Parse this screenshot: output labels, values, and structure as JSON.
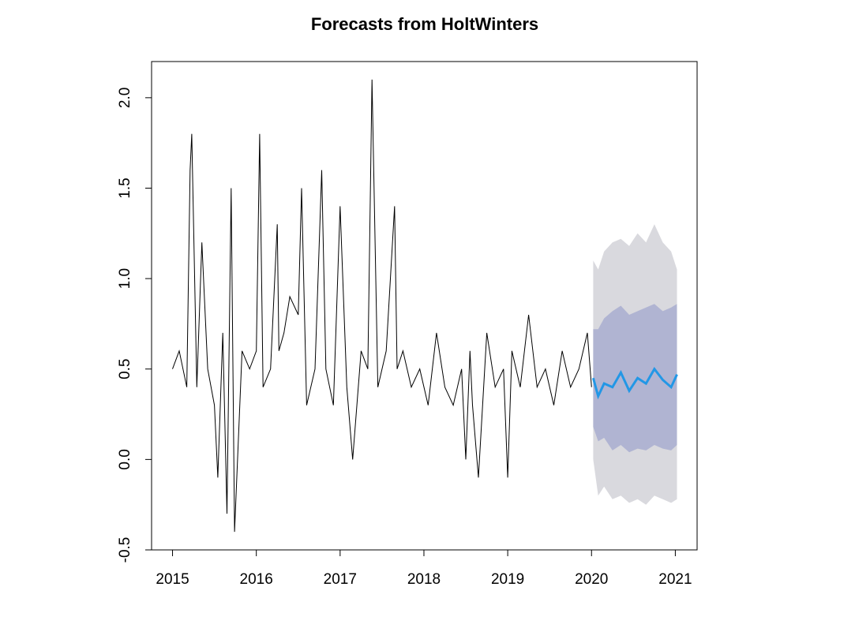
{
  "chart_data": {
    "type": "line",
    "title": "Forecasts from HoltWinters",
    "xlabel": "",
    "ylabel": "",
    "xlim": [
      2014.75,
      2021.26
    ],
    "ylim": [
      -0.5,
      2.2
    ],
    "x_ticks": [
      2015,
      2016,
      2017,
      2018,
      2019,
      2020,
      2021
    ],
    "x_tick_labels": [
      "2015",
      "2016",
      "2017",
      "2018",
      "2019",
      "2020",
      "2021"
    ],
    "y_ticks": [
      -0.5,
      0.0,
      0.5,
      1.0,
      1.5,
      2.0
    ],
    "y_tick_labels": [
      "-0.5",
      "0.0",
      "0.5",
      "1.0",
      "1.5",
      "2.0"
    ],
    "grid": false,
    "legend": "none",
    "colors": {
      "observed": "#000000",
      "forecast": "#2297e6",
      "interval_80": "#b0b4d2",
      "interval_95": "#d9d9de"
    },
    "series": [
      {
        "role": "observed",
        "x": [
          2015.0,
          2015.08,
          2015.17,
          2015.21,
          2015.23,
          2015.29,
          2015.35,
          2015.42,
          2015.5,
          2015.54,
          2015.6,
          2015.65,
          2015.7,
          2015.74,
          2015.83,
          2015.92,
          2016.0,
          2016.04,
          2016.08,
          2016.17,
          2016.25,
          2016.27,
          2016.33,
          2016.4,
          2016.5,
          2016.54,
          2016.6,
          2016.7,
          2016.78,
          2016.83,
          2016.92,
          2017.0,
          2017.08,
          2017.15,
          2017.25,
          2017.33,
          2017.38,
          2017.45,
          2017.55,
          2017.65,
          2017.68,
          2017.75,
          2017.85,
          2017.95,
          2018.05,
          2018.15,
          2018.25,
          2018.35,
          2018.45,
          2018.5,
          2018.55,
          2018.58,
          2018.65,
          2018.75,
          2018.85,
          2018.95,
          2019.0,
          2019.05,
          2019.15,
          2019.25,
          2019.35,
          2019.45,
          2019.55,
          2019.65,
          2019.75,
          2019.85,
          2019.95,
          2020.0
        ],
        "values": [
          0.5,
          0.6,
          0.4,
          1.6,
          1.8,
          0.4,
          1.2,
          0.5,
          0.3,
          -0.1,
          0.7,
          -0.3,
          1.5,
          -0.4,
          0.6,
          0.5,
          0.6,
          1.8,
          0.4,
          0.5,
          1.3,
          0.6,
          0.7,
          0.9,
          0.8,
          1.5,
          0.3,
          0.5,
          1.6,
          0.5,
          0.3,
          1.4,
          0.4,
          0.0,
          0.6,
          0.5,
          2.1,
          0.4,
          0.6,
          1.4,
          0.5,
          0.6,
          0.4,
          0.5,
          0.3,
          0.7,
          0.4,
          0.3,
          0.5,
          0.0,
          0.6,
          0.3,
          -0.1,
          0.7,
          0.4,
          0.5,
          -0.1,
          0.6,
          0.4,
          0.8,
          0.4,
          0.5,
          0.3,
          0.6,
          0.4,
          0.5,
          0.7,
          0.4
        ]
      },
      {
        "role": "forecast",
        "x": [
          2020.02,
          2020.08,
          2020.15,
          2020.25,
          2020.35,
          2020.45,
          2020.55,
          2020.65,
          2020.75,
          2020.85,
          2020.95,
          2021.02
        ],
        "values": [
          0.45,
          0.35,
          0.42,
          0.4,
          0.48,
          0.38,
          0.45,
          0.42,
          0.5,
          0.44,
          0.4,
          0.47
        ],
        "lower80": [
          0.18,
          0.1,
          0.12,
          0.05,
          0.08,
          0.04,
          0.06,
          0.05,
          0.08,
          0.06,
          0.05,
          0.08
        ],
        "upper80": [
          0.72,
          0.72,
          0.78,
          0.82,
          0.85,
          0.8,
          0.82,
          0.84,
          0.86,
          0.82,
          0.84,
          0.86
        ],
        "lower95": [
          0.0,
          -0.2,
          -0.15,
          -0.22,
          -0.2,
          -0.24,
          -0.22,
          -0.25,
          -0.2,
          -0.22,
          -0.24,
          -0.22
        ],
        "upper95": [
          1.1,
          1.05,
          1.15,
          1.2,
          1.22,
          1.18,
          1.25,
          1.2,
          1.3,
          1.2,
          1.15,
          1.05
        ]
      }
    ]
  }
}
